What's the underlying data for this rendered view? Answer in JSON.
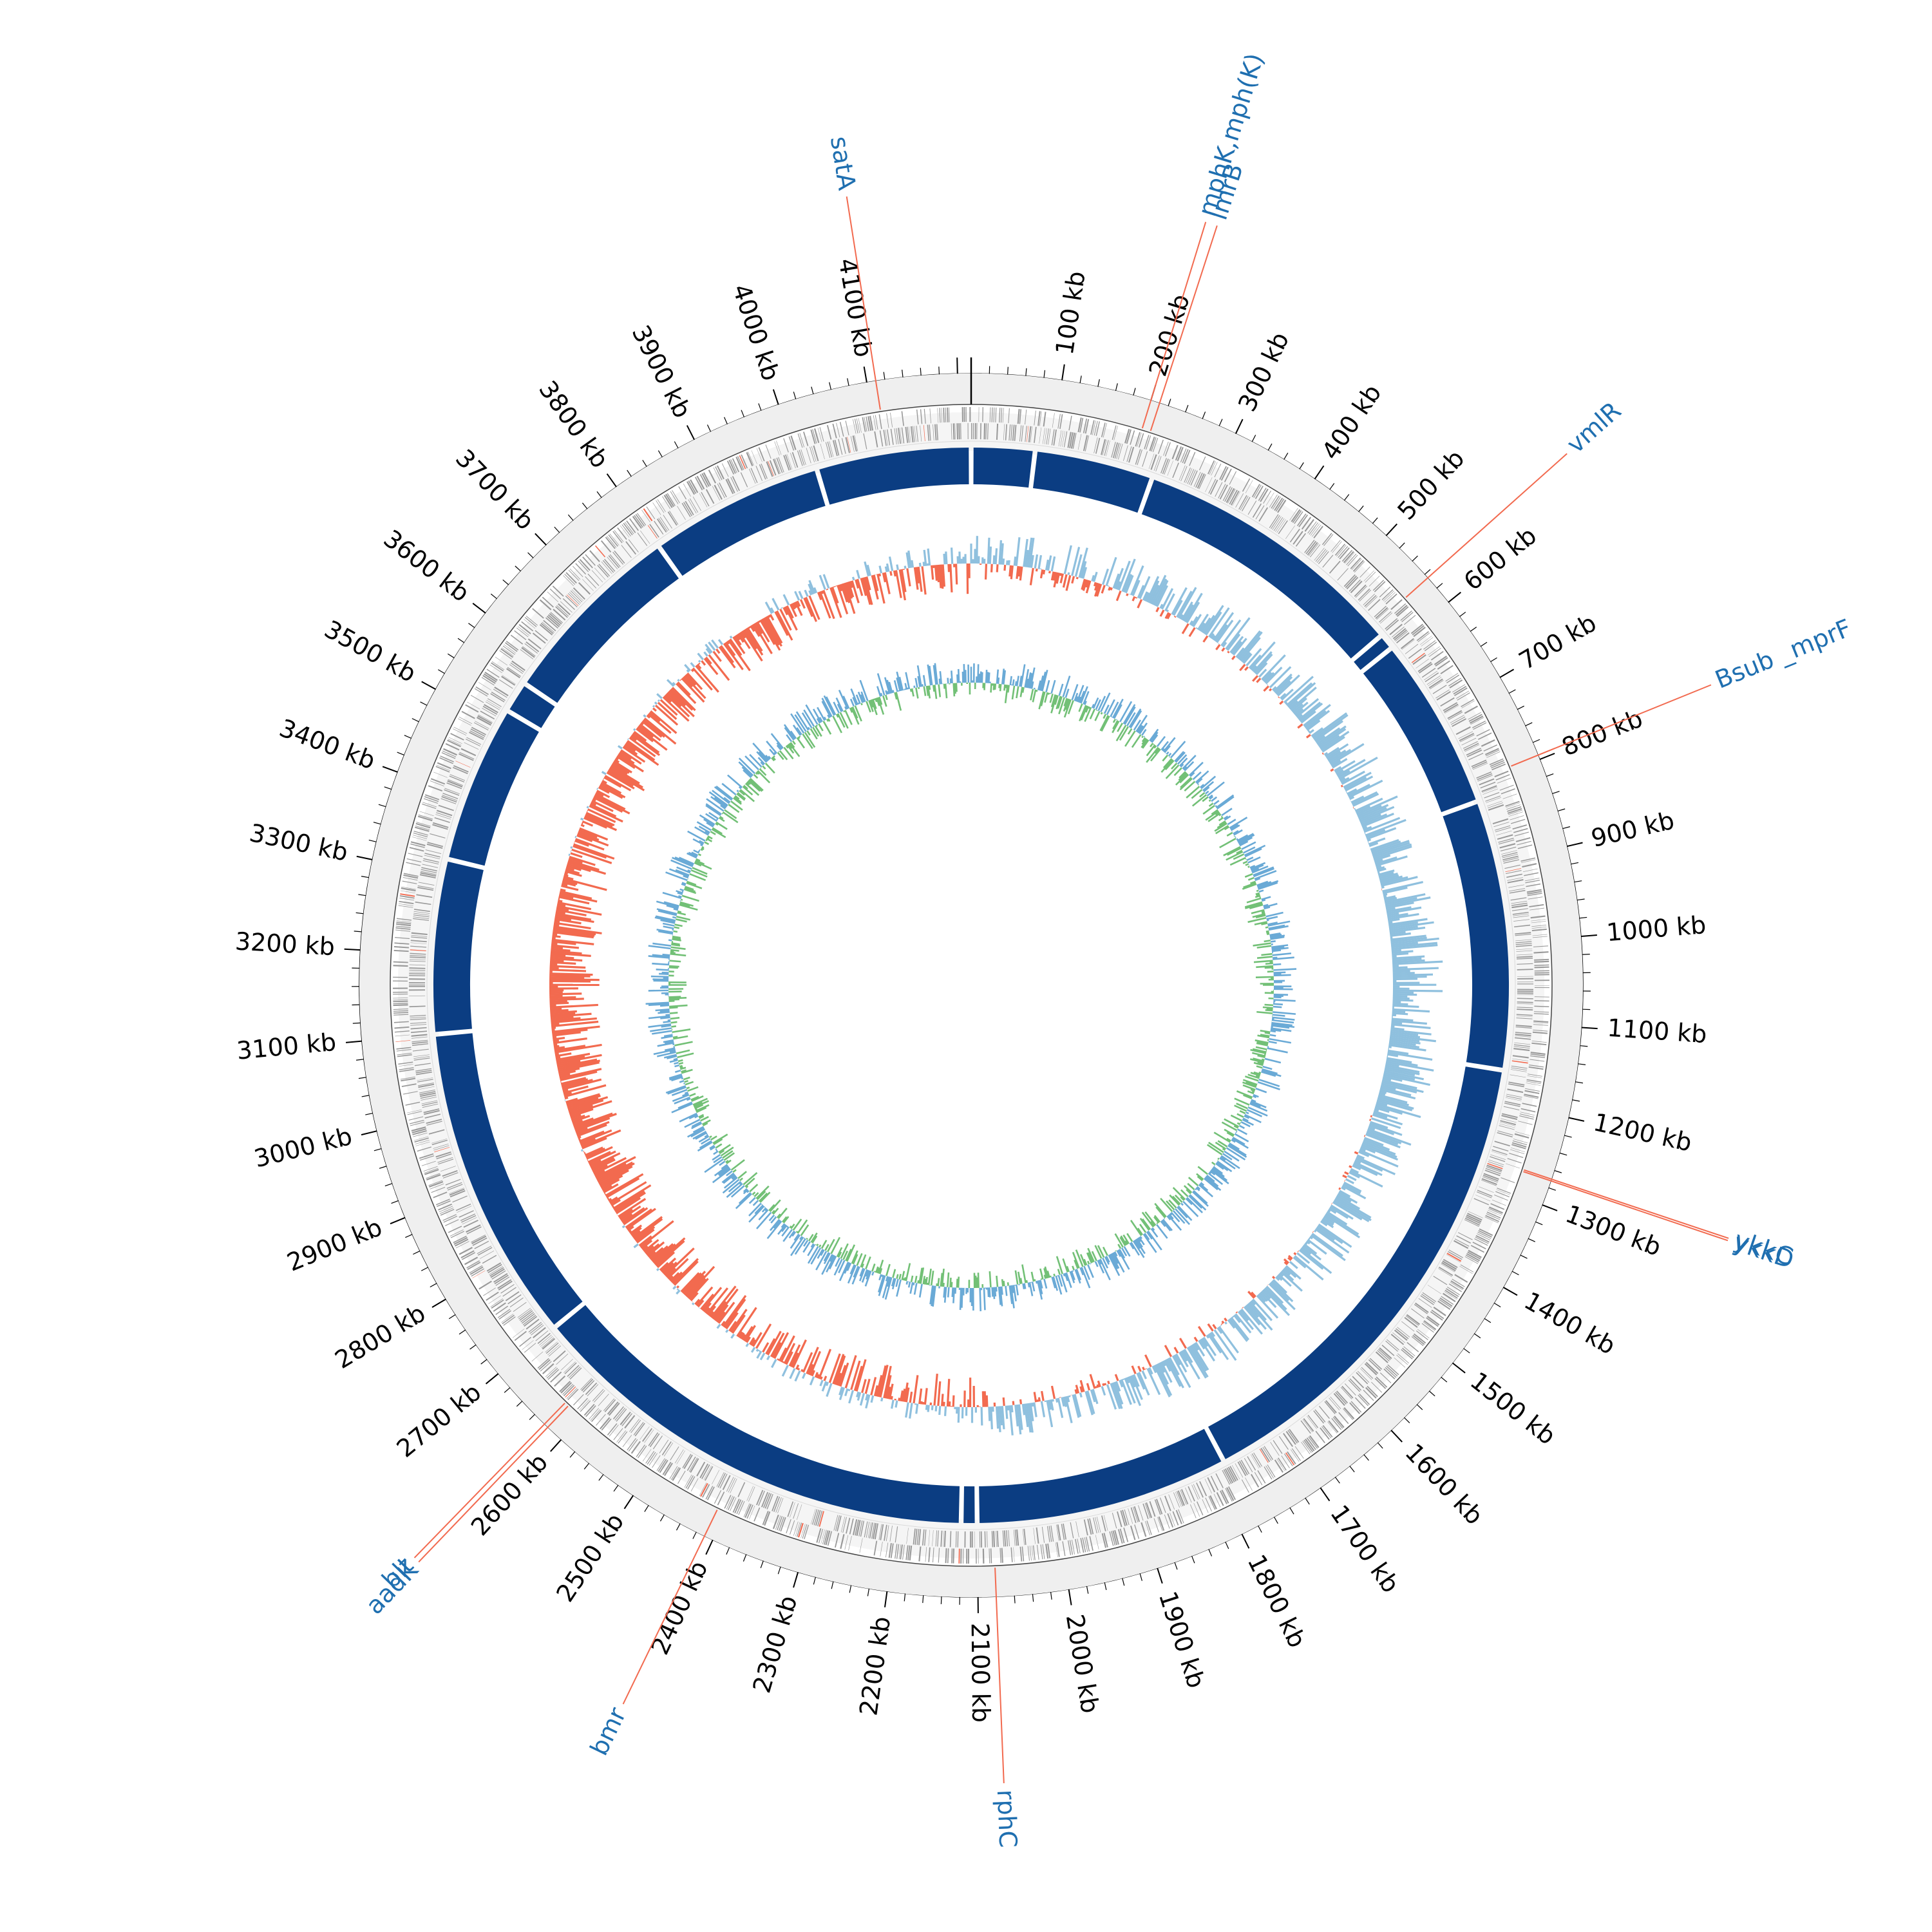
{
  "genome": {
    "length_kb": 4215,
    "tick_step_kb": 100
  },
  "colors": {
    "backbone": "#0b3d82",
    "gc_skew_positive": "#8fc0de",
    "gc_skew_negative": "#f26a4f",
    "gc_content_outer": "#6aaad6",
    "gc_content_inner": "#72c076",
    "cds": "#999999",
    "ring_background": "#efefef",
    "label_text": "#1f6fb0",
    "leader_line": "#f26a4f"
  },
  "position_labels": [
    {
      "kb": 100,
      "text": "100 kb"
    },
    {
      "kb": 200,
      "text": "200 kb"
    },
    {
      "kb": 300,
      "text": "300 kb"
    },
    {
      "kb": 400,
      "text": "400 kb"
    },
    {
      "kb": 500,
      "text": "500 kb"
    },
    {
      "kb": 600,
      "text": "600 kb"
    },
    {
      "kb": 700,
      "text": "700 kb"
    },
    {
      "kb": 800,
      "text": "800 kb"
    },
    {
      "kb": 900,
      "text": "900 kb"
    },
    {
      "kb": 1000,
      "text": "1000 kb"
    },
    {
      "kb": 1100,
      "text": "1100 kb"
    },
    {
      "kb": 1200,
      "text": "1200 kb"
    },
    {
      "kb": 1300,
      "text": "1300 kb"
    },
    {
      "kb": 1400,
      "text": "1400 kb"
    },
    {
      "kb": 1500,
      "text": "1500 kb"
    },
    {
      "kb": 1600,
      "text": "1600 kb"
    },
    {
      "kb": 1700,
      "text": "1700 kb"
    },
    {
      "kb": 1800,
      "text": "1800 kb"
    },
    {
      "kb": 1900,
      "text": "1900 kb"
    },
    {
      "kb": 2000,
      "text": "2000 kb"
    },
    {
      "kb": 2100,
      "text": "2100 kb"
    },
    {
      "kb": 2200,
      "text": "2200 kb"
    },
    {
      "kb": 2300,
      "text": "2300 kb"
    },
    {
      "kb": 2400,
      "text": "2400 kb"
    },
    {
      "kb": 2500,
      "text": "2500 kb"
    },
    {
      "kb": 2600,
      "text": "2600 kb"
    },
    {
      "kb": 2700,
      "text": "2700 kb"
    },
    {
      "kb": 2800,
      "text": "2800 kb"
    },
    {
      "kb": 2900,
      "text": "2900 kb"
    },
    {
      "kb": 3000,
      "text": "3000 kb"
    },
    {
      "kb": 3100,
      "text": "3100 kb"
    },
    {
      "kb": 3200,
      "text": "3200 kb"
    },
    {
      "kb": 3300,
      "text": "3300 kb"
    },
    {
      "kb": 3400,
      "text": "3400 kb"
    },
    {
      "kb": 3500,
      "text": "3500 kb"
    },
    {
      "kb": 3600,
      "text": "3600 kb"
    },
    {
      "kb": 3700,
      "text": "3700 kb"
    },
    {
      "kb": 3800,
      "text": "3800 kb"
    },
    {
      "kb": 3900,
      "text": "3900 kb"
    },
    {
      "kb": 4000,
      "text": "4000 kb"
    },
    {
      "kb": 4100,
      "text": "4100 kb"
    }
  ],
  "gene_annotations": [
    {
      "name": "satA",
      "kb": 4110
    },
    {
      "name": "mphK,mph(K)",
      "kb": 200
    },
    {
      "name": "lmrB",
      "kb": 210
    },
    {
      "name": "vmlR",
      "kb": 565
    },
    {
      "name": "Bsub _mprF",
      "kb": 795
    },
    {
      "name": "ykkC",
      "kb": 1270
    },
    {
      "name": "ykkD",
      "kb": 1272
    },
    {
      "name": "rphC",
      "kb": 2080
    },
    {
      "name": "bmr",
      "kb": 2410
    },
    {
      "name": "aadK",
      "kb": 2620
    },
    {
      "name": "blt",
      "kb": 2625
    }
  ]
}
